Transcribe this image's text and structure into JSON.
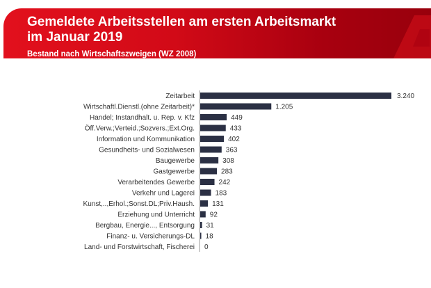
{
  "header": {
    "title_line1": "Gemeldete Arbeitsstellen am ersten Arbeitsmarkt",
    "title_line2": "im Januar 2019",
    "subtitle": "Bestand nach Wirtschaftszweigen (WZ 2008)",
    "logo_icon": "bundesagentur-a-logo",
    "colors": {
      "band_left": "#e2101d",
      "band_right": "#98000c"
    }
  },
  "chart_data": {
    "type": "bar",
    "orientation": "horizontal",
    "title": "Gemeldete Arbeitsstellen am ersten Arbeitsmarkt im Januar 2019",
    "subtitle": "Bestand nach Wirtschaftszweigen (WZ 2008)",
    "categories": [
      "Zeitarbeit",
      "Wirtschaftl.Dienstl.(ohne Zeitarbeit)*",
      "Handel; Instandhalt. u. Rep. v. Kfz",
      "Öff.Verw.;Verteid.;Sozvers.;Ext.Org.",
      "Information und Kommunikation",
      "Gesundheits- und Sozialwesen",
      "Baugewerbe",
      "Gastgewerbe",
      "Verarbeitendes Gewerbe",
      "Verkehr und Lagerei",
      "Kunst,..,Erhol.;Sonst.DL;Priv.Haush.",
      "Erziehung und Unterricht",
      "Bergbau, Energie..., Entsorgung",
      "Finanz- u. Versicherungs-DL",
      "Land- und Forstwirtschaft, Fischerei"
    ],
    "values": [
      3240,
      1205,
      449,
      433,
      402,
      363,
      308,
      283,
      242,
      183,
      131,
      92,
      31,
      18,
      0
    ],
    "data_labels": [
      "3.240",
      "1.205",
      "449",
      "433",
      "402",
      "363",
      "308",
      "283",
      "242",
      "183",
      "131",
      "92",
      "31",
      "18",
      "0"
    ],
    "bar_color": "#2b3044",
    "grid": false,
    "legend": "none"
  }
}
